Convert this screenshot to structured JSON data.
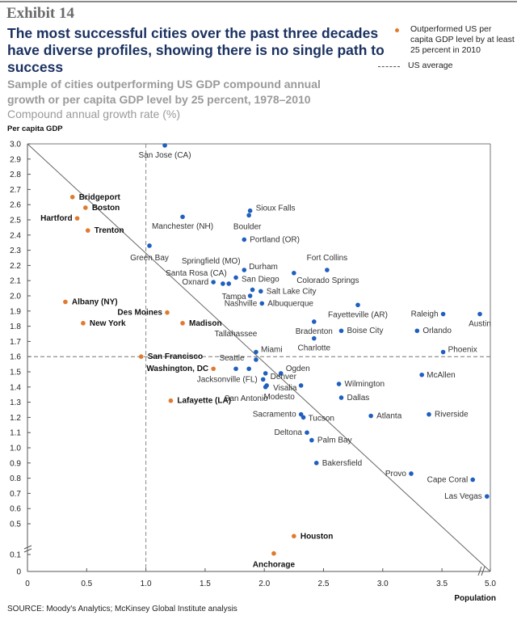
{
  "exhibit": "Exhibit 14",
  "title": "The most successful cities over the past three decades have diverse profiles, showing there is no single path to success",
  "subtitle": "Sample of cities outperforming US GDP compound annual growth or per capita GDP level by 25 percent, 1978–2010",
  "unit_label": "Compound annual growth rate (%)",
  "legend": {
    "outperformed": "Outperformed US per capita GDP level by at least 25 percent in 2010",
    "us_average": "US average"
  },
  "source": "SOURCE: Moody's Analytics; McKinsey Global Institute analysis",
  "colors": {
    "outperformed": "#e07a2e",
    "other": "#1f5fbf",
    "title": "#1a3160"
  },
  "chart_data": {
    "type": "scatter",
    "title": "The most successful cities over the past three decades have diverse profiles",
    "xlabel": "Population",
    "ylabel": "Per capita GDP",
    "xlim": [
      0,
      5.0
    ],
    "ylim": [
      0,
      3.0
    ],
    "x_ticks": [
      "0",
      "0.5",
      "1.0",
      "1.5",
      "2.0",
      "2.5",
      "3.0",
      "3.5",
      "5.0"
    ],
    "y_ticks": [
      "0",
      "0.1",
      "0.5",
      "0.6",
      "0.7",
      "0.8",
      "0.9",
      "1.0",
      "1.1",
      "1.2",
      "1.3",
      "1.4",
      "1.5",
      "1.6",
      "1.7",
      "1.8",
      "1.9",
      "2.0",
      "2.1",
      "2.2",
      "2.3",
      "2.4",
      "2.5",
      "2.6",
      "2.7",
      "2.8",
      "2.9",
      "3.0"
    ],
    "x_axis_break": "between 3.5 and 5.0",
    "y_axis_break": "between 0.1 and 0.5",
    "grid": false,
    "legend_position": "top-right",
    "reference_lines": {
      "us_average_population": 1.0,
      "us_average_per_capita_gdp": 1.6,
      "diagonal": "from (0, 3.0) to (5.0, 0)"
    },
    "series": [
      {
        "name": "Outperformed US per capita GDP level by at least 25 percent in 2010",
        "points": [
          {
            "label": "Bridgeport",
            "x": 0.38,
            "y": 2.65
          },
          {
            "label": "Boston",
            "x": 0.49,
            "y": 2.58
          },
          {
            "label": "Hartford",
            "x": 0.42,
            "y": 2.51
          },
          {
            "label": "Trenton",
            "x": 0.51,
            "y": 2.43
          },
          {
            "label": "Albany (NY)",
            "x": 0.32,
            "y": 1.96
          },
          {
            "label": "New York",
            "x": 0.47,
            "y": 1.82
          },
          {
            "label": "Des Moines",
            "x": 1.18,
            "y": 1.89
          },
          {
            "label": "Madison",
            "x": 1.31,
            "y": 1.82
          },
          {
            "label": "San Francisco",
            "x": 0.96,
            "y": 1.6
          },
          {
            "label": "Washington, DC",
            "x": 1.57,
            "y": 1.52
          },
          {
            "label": "Lafayette (LA)",
            "x": 1.21,
            "y": 1.31
          },
          {
            "label": "Houston",
            "x": 2.25,
            "y": 0.45
          },
          {
            "label": "Anchorage",
            "x": 2.08,
            "y": 0.12
          }
        ]
      },
      {
        "name": "Other cities",
        "points": [
          {
            "label": "San Jose (CA)",
            "x": 1.16,
            "y": 2.99
          },
          {
            "label": "Manchester (NH)",
            "x": 1.31,
            "y": 2.52
          },
          {
            "label": "Sioux Falls",
            "x": 1.88,
            "y": 2.56
          },
          {
            "label": "Boulder",
            "x": 1.87,
            "y": 2.53
          },
          {
            "label": "Portland (OR)",
            "x": 1.83,
            "y": 2.37
          },
          {
            "label": "Green Bay",
            "x": 1.03,
            "y": 2.33
          },
          {
            "label": "Durham",
            "x": 1.83,
            "y": 2.17
          },
          {
            "label": "Springfield (MO)",
            "x": 1.7,
            "y": 2.08
          },
          {
            "label": "Santa Rosa (CA)",
            "x": 1.65,
            "y": 2.08
          },
          {
            "label": "Oxnard",
            "x": 1.57,
            "y": 2.09
          },
          {
            "label": "San Diego",
            "x": 1.76,
            "y": 2.12
          },
          {
            "label": "Fort Collins",
            "x": 2.53,
            "y": 2.17
          },
          {
            "label": "Colorado Springs",
            "x": 2.25,
            "y": 2.15
          },
          {
            "label": "Tampa",
            "x": 1.88,
            "y": 2.0
          },
          {
            "label": "Tampa (2)",
            "x": 1.9,
            "y": 2.04
          },
          {
            "label": "Salt Lake City",
            "x": 1.97,
            "y": 2.03
          },
          {
            "label": "Nashville / Albuquerque",
            "x": 1.98,
            "y": 1.95
          },
          {
            "label": "Fayetteville (AR)",
            "x": 2.79,
            "y": 1.94
          },
          {
            "label": "Bradenton",
            "x": 2.42,
            "y": 1.83
          },
          {
            "label": "Boise City",
            "x": 2.65,
            "y": 1.77
          },
          {
            "label": "Charlotte",
            "x": 2.42,
            "y": 1.72
          },
          {
            "label": "Raleigh",
            "x": 3.51,
            "y": 1.88
          },
          {
            "label": "Austin",
            "x": 3.82,
            "y": 1.88
          },
          {
            "label": "Orlando",
            "x": 3.29,
            "y": 1.77
          },
          {
            "label": "Phoenix",
            "x": 3.51,
            "y": 1.63
          },
          {
            "label": "Tallahassee",
            "x": 1.93,
            "y": 1.58
          },
          {
            "label": "Miami",
            "x": 1.93,
            "y": 1.63
          },
          {
            "label": "Seattle",
            "x": 1.76,
            "y": 1.52
          },
          {
            "label": "Seattle (2)",
            "x": 1.87,
            "y": 1.52
          },
          {
            "label": "Denver",
            "x": 2.01,
            "y": 1.49
          },
          {
            "label": "Ogden",
            "x": 2.14,
            "y": 1.49
          },
          {
            "label": "Jacksonville (FL)",
            "x": 1.99,
            "y": 1.45
          },
          {
            "label": "Visalia",
            "x": 2.02,
            "y": 1.41
          },
          {
            "label": "San Antonio",
            "x": 2.01,
            "y": 1.4
          },
          {
            "label": "Modesto",
            "x": 2.31,
            "y": 1.41
          },
          {
            "label": "McAllen",
            "x": 3.33,
            "y": 1.48
          },
          {
            "label": "Wilmington",
            "x": 2.63,
            "y": 1.42
          },
          {
            "label": "Dallas",
            "x": 2.65,
            "y": 1.33
          },
          {
            "label": "Sacramento",
            "x": 2.31,
            "y": 1.22
          },
          {
            "label": "Tucson",
            "x": 2.33,
            "y": 1.2
          },
          {
            "label": "Atlanta",
            "x": 2.9,
            "y": 1.21
          },
          {
            "label": "Riverside",
            "x": 3.39,
            "y": 1.22
          },
          {
            "label": "Deltona",
            "x": 2.36,
            "y": 1.1
          },
          {
            "label": "Palm Bay",
            "x": 2.4,
            "y": 1.05
          },
          {
            "label": "Bakersfield",
            "x": 2.44,
            "y": 0.9
          },
          {
            "label": "Provo",
            "x": 3.24,
            "y": 0.83
          },
          {
            "label": "Cape Coral",
            "x": 3.76,
            "y": 0.79
          },
          {
            "label": "Las Vegas",
            "x": 3.88,
            "y": 0.68
          }
        ]
      }
    ]
  }
}
